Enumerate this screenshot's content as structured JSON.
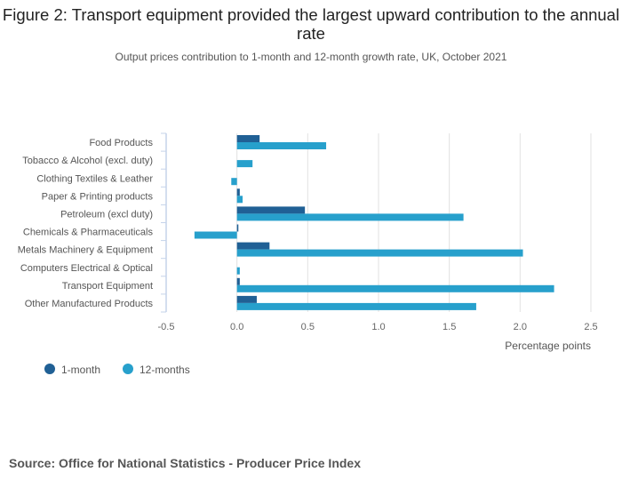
{
  "title": "Figure 2: Transport equipment provided the largest upward contribution to the annual rate",
  "subtitle": "Output prices contribution to 1-month and 12-month growth rate, UK, October 2021",
  "source": "Source: Office for National Statistics - Producer Price Index",
  "chart_data": {
    "type": "bar",
    "orientation": "horizontal",
    "title": "Figure 2: Transport equipment provided the largest upward contribution to the annual rate",
    "subtitle": "Output prices contribution to 1-month and 12-month growth rate, UK, October 2021",
    "xlabel": "Percentage points",
    "ylabel": "",
    "xlim": [
      -0.5,
      2.5
    ],
    "xticks": [
      "-0.5",
      "0.0",
      "0.5",
      "1.0",
      "1.5",
      "2.0",
      "2.5"
    ],
    "xtick_values": [
      -0.5,
      0,
      0.5,
      1.0,
      1.5,
      2.0,
      2.5
    ],
    "grid": true,
    "legend_position": "bottom-left",
    "categories": [
      "Food Products",
      "Tobacco & Alcohol (excl. duty)",
      "Clothing Textiles & Leather",
      "Paper & Printing products",
      "Petroleum (excl duty)",
      "Chemicals & Pharmaceuticals",
      "Metals Machinery & Equipment",
      "Computers Electrical & Optical",
      "Transport Equipment",
      "Other Manufactured Products"
    ],
    "series": [
      {
        "name": "1-month",
        "color": "#206095",
        "values": [
          0.16,
          0.0,
          0.0,
          0.02,
          0.48,
          0.01,
          0.23,
          0.0,
          0.02,
          0.14
        ]
      },
      {
        "name": "12-months",
        "color": "#27a0cc",
        "values": [
          0.63,
          0.11,
          -0.04,
          0.04,
          1.6,
          -0.3,
          2.02,
          0.02,
          2.24,
          1.69
        ]
      }
    ]
  }
}
